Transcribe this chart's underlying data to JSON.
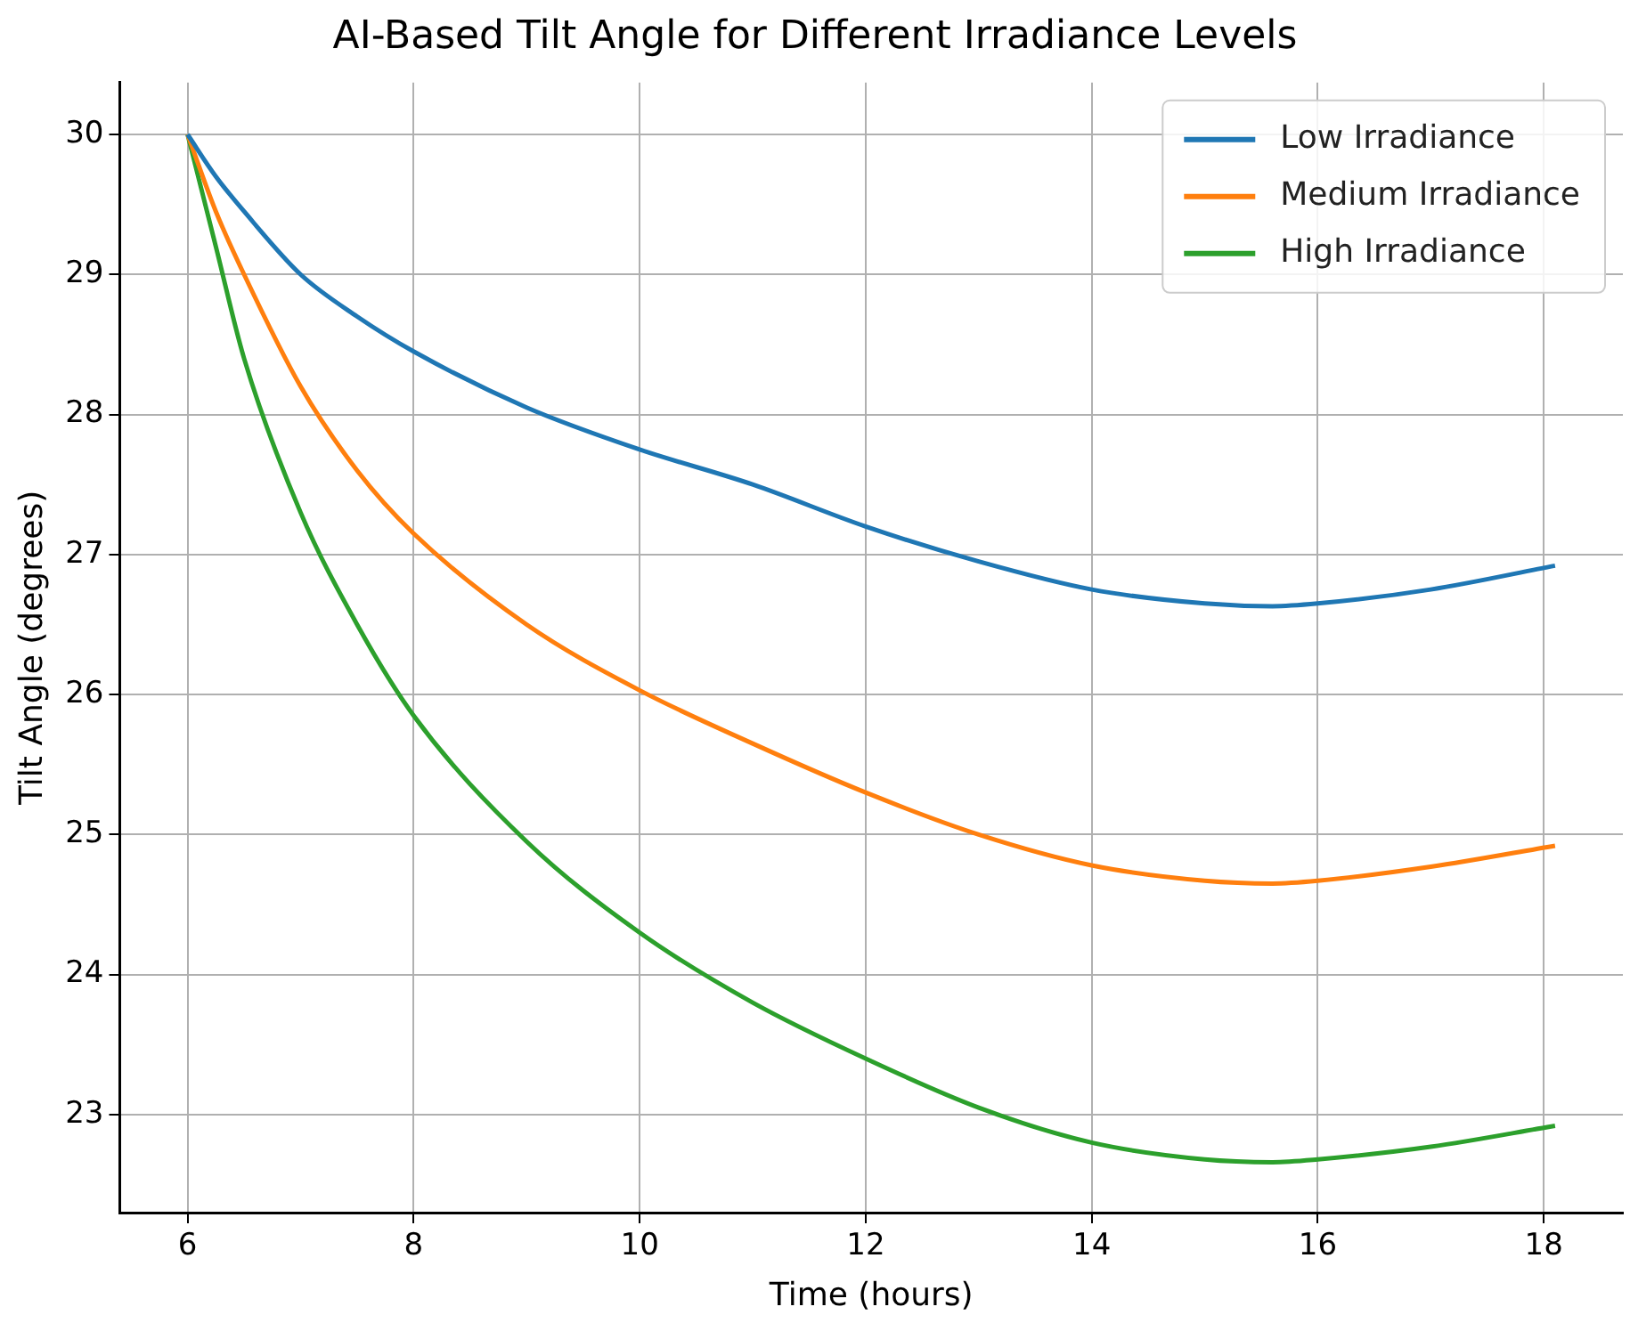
{
  "chart_data": {
    "type": "line",
    "title": "AI-Based Tilt Angle for Different Irradiance Levels",
    "xlabel": "Time (hours)",
    "ylabel": "Tilt Angle (degrees)",
    "x": [
      6,
      6.25,
      6.5,
      7,
      7.5,
      8,
      9,
      10,
      11,
      12,
      13,
      14,
      15,
      15.6,
      16,
      17,
      18.1
    ],
    "series": [
      {
        "name": "Low Irradiance",
        "color": "#1f77b4",
        "values": [
          30,
          29.7,
          29.45,
          29.0,
          28.7,
          28.45,
          28.05,
          27.75,
          27.5,
          27.2,
          26.95,
          26.75,
          26.65,
          26.63,
          26.65,
          26.75,
          26.92
        ]
      },
      {
        "name": "Medium Irradiance",
        "color": "#ff7f0e",
        "values": [
          30,
          29.45,
          29.0,
          28.2,
          27.6,
          27.15,
          26.5,
          26.03,
          25.65,
          25.3,
          25.0,
          24.78,
          24.67,
          24.65,
          24.67,
          24.77,
          24.92
        ]
      },
      {
        "name": "High Irradiance",
        "color": "#2ca02c",
        "values": [
          30,
          29.2,
          28.4,
          27.3,
          26.5,
          25.85,
          24.95,
          24.3,
          23.8,
          23.4,
          23.05,
          22.8,
          22.68,
          22.66,
          22.68,
          22.77,
          22.92
        ]
      }
    ],
    "xlim": [
      5.4,
      18.7
    ],
    "xticks": [
      6,
      8,
      10,
      12,
      14,
      16,
      18
    ],
    "ylim": [
      22.3,
      30.37
    ],
    "yticks": [
      23,
      24,
      25,
      26,
      27,
      28,
      29,
      30
    ],
    "grid": true,
    "legend": "top right",
    "marker": "none",
    "line_style": "solid"
  }
}
